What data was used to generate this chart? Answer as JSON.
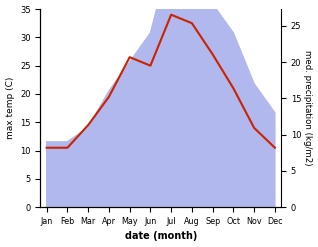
{
  "months": [
    "Jan",
    "Feb",
    "Mar",
    "Apr",
    "May",
    "Jun",
    "Jul",
    "Aug",
    "Sep",
    "Oct",
    "Nov",
    "Dec"
  ],
  "temp": [
    10.5,
    10.5,
    14.5,
    19.5,
    26.5,
    25.0,
    34.0,
    32.5,
    27.0,
    21.0,
    14.0,
    10.5
  ],
  "precip": [
    9,
    9,
    11,
    16,
    20,
    24,
    35,
    34,
    28,
    24,
    17,
    13
  ],
  "precip_scaled": [
    9,
    9,
    11,
    16,
    20,
    24,
    35,
    34,
    28,
    24,
    17,
    13
  ],
  "temp_color": "#cc2200",
  "precip_color": "#b0b8ee",
  "temp_ylim": [
    0,
    35
  ],
  "precip_ylim": [
    0,
    27.3
  ],
  "left_yticks": [
    0,
    5,
    10,
    15,
    20,
    25,
    30,
    35
  ],
  "right_yticks": [
    0,
    5,
    10,
    15,
    20,
    25
  ],
  "xlabel": "date (month)",
  "ylabel_left": "max temp (C)",
  "ylabel_right": "med. precipitation (kg/m2)",
  "bg_color": "#ffffff"
}
